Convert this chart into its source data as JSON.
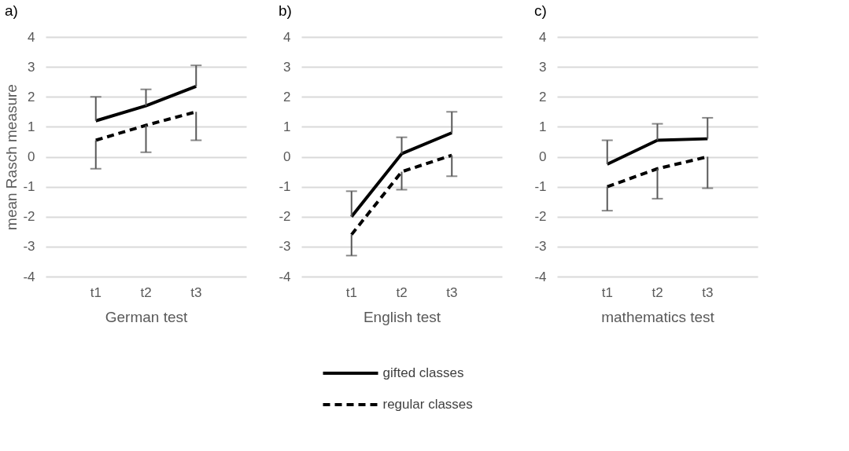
{
  "chart_data": [
    {
      "type": "line",
      "title": "a)",
      "categories": [
        "t1",
        "t2",
        "t3"
      ],
      "xlabel": "German test",
      "ylabel": "mean Rasch measure",
      "ylim": [
        -4,
        4
      ],
      "yticks": [
        -4,
        -3,
        -2,
        -1,
        0,
        1,
        2,
        3,
        4
      ],
      "grid": "y",
      "legend": "bottom",
      "series": [
        {
          "name": "gifted classes",
          "color": "#000000",
          "line_style": "solid",
          "values": [
            1.2,
            1.7,
            2.35
          ],
          "errors": [
            [
              1.2,
              2.0
            ],
            [
              1.7,
              2.25
            ],
            [
              2.35,
              3.05
            ]
          ]
        },
        {
          "name": "regular classes",
          "color": "#000000",
          "line_style": "dashed",
          "values": [
            0.55,
            1.05,
            1.5
          ],
          "errors": [
            [
              -0.4,
              0.55
            ],
            [
              0.15,
              1.05
            ],
            [
              0.55,
              1.5
            ]
          ]
        }
      ]
    },
    {
      "type": "line",
      "title": "b)",
      "categories": [
        "t1",
        "t2",
        "t3"
      ],
      "xlabel": "English test",
      "ylim": [
        -4,
        4
      ],
      "yticks": [
        -4,
        -3,
        -2,
        -1,
        0,
        1,
        2,
        3,
        4
      ],
      "grid": "y",
      "legend": "bottom",
      "series": [
        {
          "name": "gifted classes",
          "color": "#000000",
          "line_style": "solid",
          "values": [
            -2.0,
            0.1,
            0.8
          ],
          "errors": [
            [
              -2.0,
              -1.15
            ],
            [
              0.1,
              0.65
            ],
            [
              0.8,
              1.5
            ]
          ]
        },
        {
          "name": "regular classes",
          "color": "#000000",
          "line_style": "dashed",
          "values": [
            -2.6,
            -0.5,
            0.05
          ],
          "errors": [
            [
              -3.3,
              -2.6
            ],
            [
              -1.1,
              -0.5
            ],
            [
              -0.65,
              0.05
            ]
          ]
        }
      ]
    },
    {
      "type": "line",
      "title": "c)",
      "categories": [
        "t1",
        "t2",
        "t3"
      ],
      "xlabel": "mathematics test",
      "ylim": [
        -4,
        4
      ],
      "yticks": [
        -4,
        -3,
        -2,
        -1,
        0,
        1,
        2,
        3,
        4
      ],
      "grid": "y",
      "legend": "bottom",
      "series": [
        {
          "name": "gifted classes",
          "color": "#000000",
          "line_style": "solid",
          "values": [
            -0.25,
            0.55,
            0.6
          ],
          "errors": [
            [
              -0.25,
              0.55
            ],
            [
              0.55,
              1.1
            ],
            [
              0.6,
              1.3
            ]
          ]
        },
        {
          "name": "regular classes",
          "color": "#000000",
          "line_style": "dashed",
          "values": [
            -1.0,
            -0.4,
            0.0
          ],
          "errors": [
            [
              -1.8,
              -1.0
            ],
            [
              -1.4,
              -0.4
            ],
            [
              -1.05,
              0.0
            ]
          ]
        }
      ]
    }
  ]
}
